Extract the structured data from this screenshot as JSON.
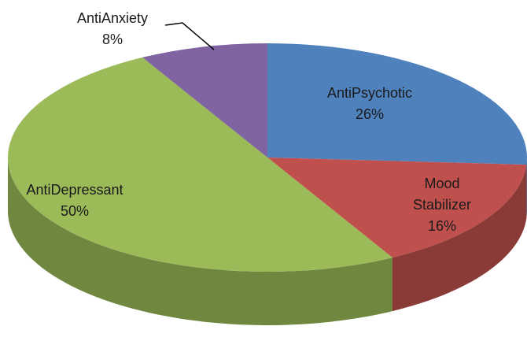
{
  "chart_data": {
    "type": "pie3d",
    "categories": [
      "AntiPsychotic",
      "Mood Stabilizer",
      "AntiDepressant",
      "AntiAnxiety"
    ],
    "values": [
      26,
      16,
      50,
      8
    ],
    "value_labels": [
      "26%",
      "16%",
      "50%",
      "8%"
    ],
    "colors": [
      "#4f81bd",
      "#c0504d",
      "#9bbb59",
      "#8064a2"
    ]
  }
}
